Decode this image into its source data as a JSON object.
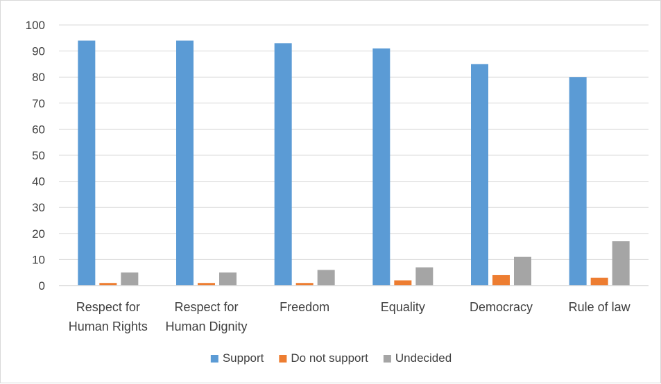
{
  "chart_data": {
    "type": "bar",
    "title": "",
    "xlabel": "",
    "ylabel": "",
    "ylim": [
      0,
      100
    ],
    "yticks": [
      0,
      10,
      20,
      30,
      40,
      50,
      60,
      70,
      80,
      90,
      100
    ],
    "grid": true,
    "legend_position": "bottom",
    "categories": [
      [
        "Respect for",
        "Human Rights"
      ],
      [
        "Respect for",
        "Human Dignity"
      ],
      [
        "Freedom"
      ],
      [
        "Equality"
      ],
      [
        "Democracy"
      ],
      [
        "Rule of law"
      ]
    ],
    "series": [
      {
        "name": "Support",
        "color": "#5b9bd5",
        "values": [
          94,
          94,
          93,
          91,
          85,
          80
        ]
      },
      {
        "name": "Do not support",
        "color": "#ed7d31",
        "values": [
          1,
          1,
          1,
          2,
          4,
          3
        ]
      },
      {
        "name": "Undecided",
        "color": "#a5a5a5",
        "values": [
          5,
          5,
          6,
          7,
          11,
          17
        ]
      }
    ]
  }
}
